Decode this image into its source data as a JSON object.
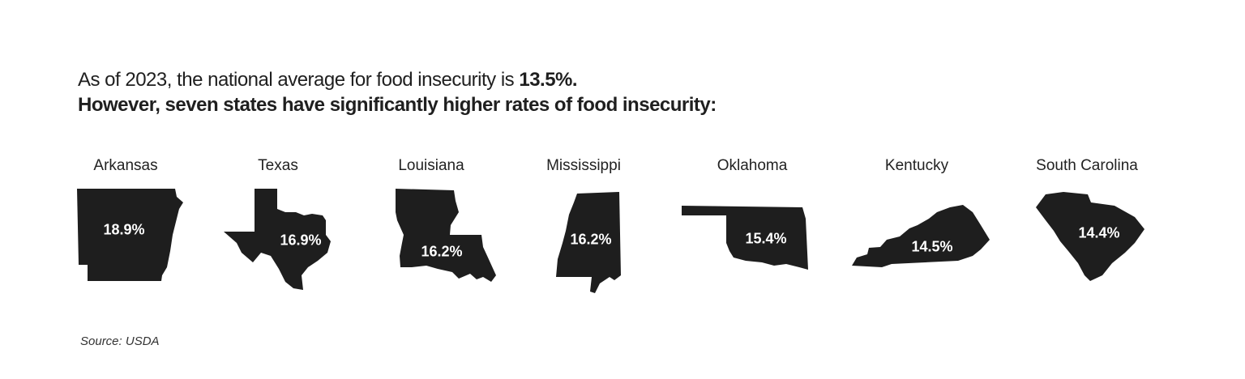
{
  "header": {
    "line1_prefix": "As of 2023, the national average for food insecurity is ",
    "line1_value": "13.5%.",
    "line2": "However, seven states have significantly higher rates of food insecurity:"
  },
  "chart_data": {
    "type": "table",
    "categories": [
      "Arkansas",
      "Texas",
      "Louisiana",
      "Mississippi",
      "Oklahoma",
      "Kentucky",
      "South Carolina"
    ],
    "values": [
      18.9,
      16.9,
      16.2,
      16.2,
      15.4,
      14.5,
      14.4
    ],
    "labels": [
      "18.9%",
      "16.9%",
      "16.2%",
      "16.2%",
      "15.4%",
      "14.5%",
      "14.4%"
    ],
    "national_average": 13.5,
    "shape_color": "#1e1e1e"
  },
  "footer": {
    "source": "Source: USDA"
  }
}
